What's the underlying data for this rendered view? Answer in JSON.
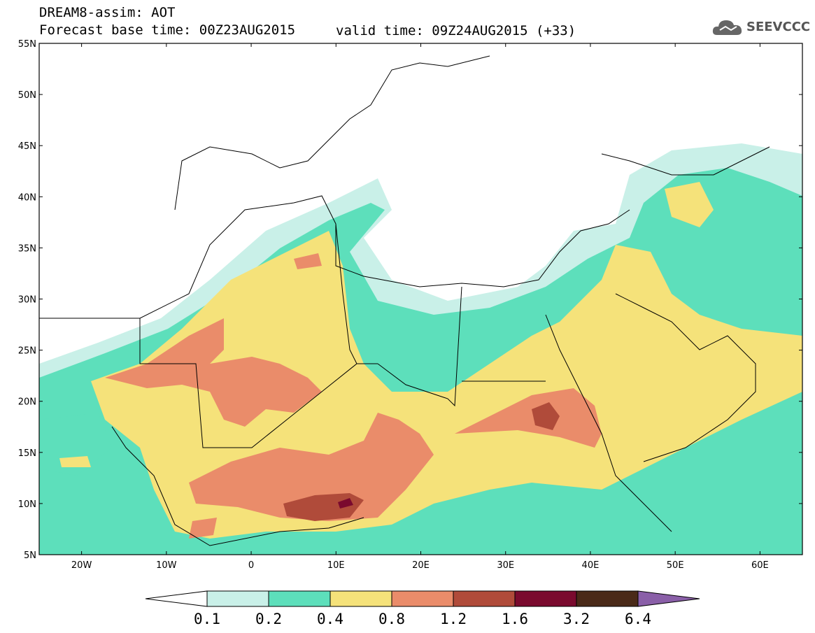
{
  "header": {
    "model_line": "DREAM8-assim: AOT",
    "base_time": "Forecast base time: 00Z23AUG2015",
    "valid_time": "valid time: 09Z24AUG2015 (+33)"
  },
  "logo": {
    "text": "SEEVCCC",
    "icon": "cloud-icon"
  },
  "axes": {
    "lat_labels": [
      "55N",
      "50N",
      "45N",
      "40N",
      "35N",
      "30N",
      "25N",
      "20N",
      "15N",
      "10N",
      "5N"
    ],
    "lon_labels": [
      "20W",
      "10W",
      "0",
      "10E",
      "20E",
      "30E",
      "40E",
      "50E",
      "60E"
    ],
    "lon_range": [
      -25,
      65
    ],
    "lat_range": [
      5,
      55
    ]
  },
  "colorbar": {
    "levels": [
      "0.1",
      "0.2",
      "0.4",
      "0.8",
      "1.2",
      "1.6",
      "3.2",
      "6.4"
    ],
    "colors": [
      "#ffffff",
      "#c9f0e8",
      "#5ddfbb",
      "#f5e27a",
      "#ea8c6a",
      "#b04b3a",
      "#7a0a2e",
      "#4a2a18",
      "#8a5fa8"
    ]
  }
}
